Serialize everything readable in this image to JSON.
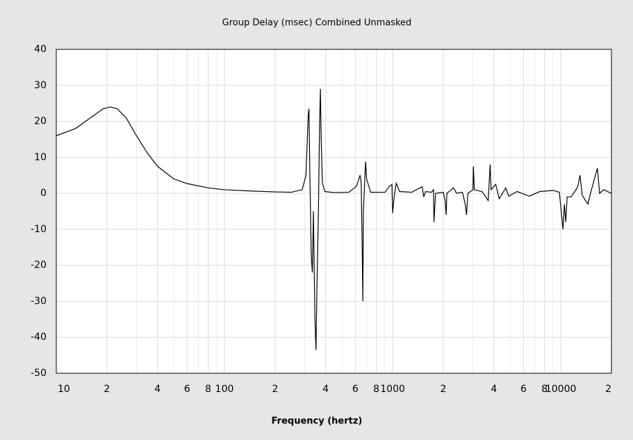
{
  "chart_data": {
    "type": "line",
    "title": "Group Delay (msec)   Combined   Unmasked",
    "xlabel": "Frequency (hertz)",
    "xscale": "log",
    "grid": true,
    "xlim": [
      10,
      20000
    ],
    "ylim": [
      -50,
      40
    ],
    "yticks": [
      -50,
      -40,
      -30,
      -20,
      -10,
      0,
      10,
      20,
      30,
      40
    ],
    "xticks": [
      10,
      {
        "value": 20,
        "label": "2"
      },
      {
        "value": 40,
        "label": "4"
      },
      {
        "value": 60,
        "label": "6"
      },
      {
        "value": 80,
        "label": "8"
      },
      100,
      {
        "value": 200,
        "label": "2"
      },
      {
        "value": 400,
        "label": "4"
      },
      {
        "value": 600,
        "label": "6"
      },
      {
        "value": 800,
        "label": "8"
      },
      1000,
      {
        "value": 2000,
        "label": "2"
      },
      {
        "value": 4000,
        "label": "4"
      },
      {
        "value": 6000,
        "label": "6"
      },
      {
        "value": 8000,
        "label": "8"
      },
      10000,
      {
        "value": 20000,
        "label": "2"
      }
    ],
    "xminor": [
      30,
      50,
      70,
      90,
      300,
      500,
      700,
      900,
      3000,
      5000,
      7000,
      9000
    ],
    "series": [
      {
        "color": "#000000",
        "x": [
          10,
          13,
          16,
          19,
          21,
          23,
          26,
          30,
          35,
          40,
          50,
          60,
          80,
          100,
          150,
          200,
          250,
          290,
          305,
          315,
          318,
          322,
          328,
          333,
          338,
          345,
          350,
          355,
          362,
          368,
          372,
          376,
          382,
          395,
          450,
          550,
          610,
          640,
          650,
          660,
          665,
          670,
          690,
          700,
          740,
          900,
          960,
          990,
          1000,
          1020,
          1050,
          1100,
          1300,
          1450,
          1500,
          1530,
          1570,
          1700,
          1750,
          1760,
          1800,
          2000,
          2050,
          2080,
          2100,
          2300,
          2400,
          2600,
          2700,
          2750,
          2800,
          3000,
          3020,
          3060,
          3400,
          3700,
          3800,
          3850,
          4100,
          4300,
          4500,
          4700,
          4900,
          5500,
          6500,
          7500,
          9000,
          9800,
          10300,
          10500,
          10700,
          10900,
          11500,
          12500,
          12700,
          13000,
          13400,
          14000,
          14500,
          15000,
          16500,
          17000,
          18000,
          20000
        ],
        "values": [
          16,
          18,
          21,
          23.5,
          24,
          23.5,
          21,
          16,
          11,
          7.5,
          4,
          2.7,
          1.5,
          1,
          0.6,
          0.4,
          0.3,
          1,
          5,
          22,
          23.5,
          5,
          -17,
          -22,
          -5,
          -35,
          -43.5,
          -25,
          -5,
          20,
          29,
          15,
          3,
          0.5,
          0.2,
          0.3,
          2,
          5,
          3,
          -17,
          -30,
          -5,
          8.8,
          4,
          0.3,
          0.3,
          2,
          2.5,
          -5.5,
          -1,
          2.8,
          0.5,
          0.3,
          1.5,
          1.8,
          -1,
          0.5,
          0.3,
          1,
          -8,
          0,
          0.3,
          -2,
          -6,
          0,
          1.5,
          0,
          0.3,
          -3,
          -6,
          0,
          1,
          7.5,
          1,
          0.5,
          -2,
          8,
          1,
          2.5,
          -1.5,
          0,
          1.5,
          -0.8,
          0.5,
          -0.8,
          0.5,
          0.8,
          0.3,
          -10,
          -3,
          -8,
          -1,
          -1,
          1.5,
          2.5,
          5,
          -0.5,
          -2,
          -3,
          0,
          7,
          0,
          1,
          0
        ]
      }
    ]
  }
}
